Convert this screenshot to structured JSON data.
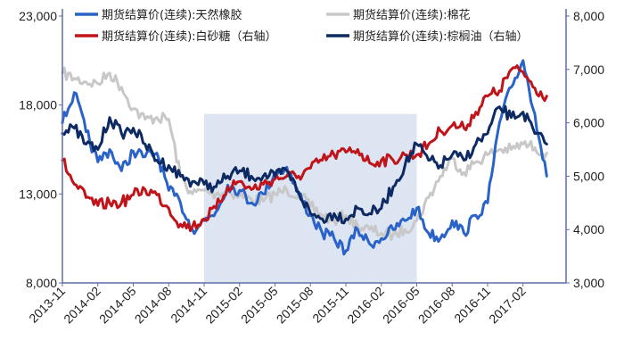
{
  "chart_data": {
    "type": "line",
    "title": "",
    "xlabel": "",
    "ylabel": "",
    "y_left": {
      "range": [
        8000,
        23000
      ],
      "ticks": [
        "8,000",
        "13,000",
        "18,000",
        "23,000"
      ]
    },
    "y_right": {
      "range": [
        3000,
        8000
      ],
      "ticks": [
        "3,000",
        "4,000",
        "5,000",
        "6,000",
        "7,000",
        "8,000"
      ]
    },
    "x_tick_labels": [
      "2013-11",
      "2014-02",
      "2014-05",
      "2014-08",
      "2014-11",
      "2015-02",
      "2015-05",
      "2015-08",
      "2015-11",
      "2016-02",
      "2016-05",
      "2016-08",
      "2016-11",
      "2017-02"
    ],
    "shaded_region": {
      "x_start": "2014-11",
      "x_end": "2016-05",
      "y_top": 17500,
      "color": "#dde4f2"
    },
    "legend_placement": "top",
    "grid": false,
    "colors": {
      "background": "#ffffff",
      "axis": "#5b6fa6",
      "shade": "#dde4f2"
    },
    "series": [
      {
        "name": "期货结算价(连续):天然橡胶",
        "axis": "left",
        "color": "#2a63c8",
        "data": [
          [
            "2013-11",
            17000
          ],
          [
            "2013-12",
            18700
          ],
          [
            "2014-01",
            16500
          ],
          [
            "2014-02",
            14800
          ],
          [
            "2014-03",
            15500
          ],
          [
            "2014-04",
            14300
          ],
          [
            "2014-05",
            15400
          ],
          [
            "2014-06",
            15100
          ],
          [
            "2014-07",
            15300
          ],
          [
            "2014-08",
            13200
          ],
          [
            "2014-09",
            12500
          ],
          [
            "2014-10",
            11000
          ],
          [
            "2014-11",
            11500
          ],
          [
            "2014-12",
            12000
          ],
          [
            "2015-01",
            13500
          ],
          [
            "2015-02",
            13200
          ],
          [
            "2015-03",
            12500
          ],
          [
            "2015-04",
            13000
          ],
          [
            "2015-05",
            14200
          ],
          [
            "2015-06",
            14500
          ],
          [
            "2015-07",
            13000
          ],
          [
            "2015-08",
            11800
          ],
          [
            "2015-09",
            10800
          ],
          [
            "2015-10",
            10500
          ],
          [
            "2015-11",
            9800
          ],
          [
            "2015-12",
            11000
          ],
          [
            "2016-01",
            10200
          ],
          [
            "2016-02",
            10500
          ],
          [
            "2016-03",
            11000
          ],
          [
            "2016-04",
            11500
          ],
          [
            "2016-05",
            12200
          ],
          [
            "2016-06",
            10800
          ],
          [
            "2016-07",
            10500
          ],
          [
            "2016-08",
            11500
          ],
          [
            "2016-09",
            10800
          ],
          [
            "2016-10",
            11800
          ],
          [
            "2016-11",
            12500
          ],
          [
            "2016-12",
            17000
          ],
          [
            "2017-01",
            19000
          ],
          [
            "2017-02",
            20500
          ],
          [
            "2017-03",
            17500
          ],
          [
            "2017-04",
            14000
          ]
        ]
      },
      {
        "name": "期货结算价(连续):棉花",
        "axis": "left",
        "color": "#c8c8c8",
        "data": [
          [
            "2013-11",
            19800
          ],
          [
            "2013-12",
            19500
          ],
          [
            "2014-01",
            19300
          ],
          [
            "2014-02",
            19200
          ],
          [
            "2014-03",
            19800
          ],
          [
            "2014-04",
            19000
          ],
          [
            "2014-05",
            17800
          ],
          [
            "2014-06",
            17200
          ],
          [
            "2014-07",
            17300
          ],
          [
            "2014-08",
            17200
          ],
          [
            "2014-09",
            14000
          ],
          [
            "2014-10",
            13000
          ],
          [
            "2014-11",
            13200
          ],
          [
            "2014-12",
            13000
          ],
          [
            "2015-01",
            13200
          ],
          [
            "2015-02",
            12900
          ],
          [
            "2015-03",
            12700
          ],
          [
            "2015-04",
            12600
          ],
          [
            "2015-05",
            13000
          ],
          [
            "2015-06",
            13200
          ],
          [
            "2015-07",
            13000
          ],
          [
            "2015-08",
            12300
          ],
          [
            "2015-09",
            11800
          ],
          [
            "2015-10",
            11500
          ],
          [
            "2015-11",
            11800
          ],
          [
            "2015-12",
            11200
          ],
          [
            "2016-01",
            11000
          ],
          [
            "2016-02",
            10800
          ],
          [
            "2016-03",
            10700
          ],
          [
            "2016-04",
            11000
          ],
          [
            "2016-05",
            11500
          ],
          [
            "2016-06",
            12800
          ],
          [
            "2016-07",
            14000
          ],
          [
            "2016-08",
            15000
          ],
          [
            "2016-09",
            14200
          ],
          [
            "2016-10",
            14800
          ],
          [
            "2016-11",
            15200
          ],
          [
            "2016-12",
            15500
          ],
          [
            "2017-01",
            15500
          ],
          [
            "2017-02",
            15800
          ],
          [
            "2017-03",
            15600
          ],
          [
            "2017-04",
            15300
          ]
        ]
      },
      {
        "name": "期货结算价(连续):白砂糖（右轴）",
        "axis": "right",
        "color": "#c0141b",
        "data": [
          [
            "2013-11",
            5300
          ],
          [
            "2013-12",
            4850
          ],
          [
            "2014-01",
            4600
          ],
          [
            "2014-02",
            4450
          ],
          [
            "2014-03",
            4500
          ],
          [
            "2014-04",
            4500
          ],
          [
            "2014-05",
            4650
          ],
          [
            "2014-06",
            4750
          ],
          [
            "2014-07",
            4650
          ],
          [
            "2014-08",
            4400
          ],
          [
            "2014-09",
            4100
          ],
          [
            "2014-10",
            4050
          ],
          [
            "2014-11",
            4200
          ],
          [
            "2014-12",
            4400
          ],
          [
            "2015-01",
            4800
          ],
          [
            "2015-02",
            4900
          ],
          [
            "2015-03",
            4750
          ],
          [
            "2015-04",
            4850
          ],
          [
            "2015-05",
            4950
          ],
          [
            "2015-06",
            5000
          ],
          [
            "2015-07",
            5000
          ],
          [
            "2015-08",
            5150
          ],
          [
            "2015-09",
            5300
          ],
          [
            "2015-10",
            5400
          ],
          [
            "2015-11",
            5450
          ],
          [
            "2015-12",
            5500
          ],
          [
            "2016-01",
            5250
          ],
          [
            "2016-02",
            5300
          ],
          [
            "2016-03",
            5300
          ],
          [
            "2016-04",
            5400
          ],
          [
            "2016-05",
            5400
          ],
          [
            "2016-06",
            5600
          ],
          [
            "2016-07",
            5850
          ],
          [
            "2016-08",
            5950
          ],
          [
            "2016-09",
            5900
          ],
          [
            "2016-10",
            6200
          ],
          [
            "2016-11",
            6500
          ],
          [
            "2016-12",
            6600
          ],
          [
            "2017-01",
            7000
          ],
          [
            "2017-02",
            6950
          ],
          [
            "2017-03",
            6650
          ],
          [
            "2017-04",
            6500
          ]
        ]
      },
      {
        "name": "期货结算价(连续):棕榈油（右轴）",
        "axis": "right",
        "color": "#0d2a63",
        "data": [
          [
            "2013-11",
            5800
          ],
          [
            "2013-12",
            5900
          ],
          [
            "2014-01",
            5600
          ],
          [
            "2014-02",
            5500
          ],
          [
            "2014-03",
            6100
          ],
          [
            "2014-04",
            5800
          ],
          [
            "2014-05",
            5900
          ],
          [
            "2014-06",
            5600
          ],
          [
            "2014-07",
            5300
          ],
          [
            "2014-08",
            5200
          ],
          [
            "2014-09",
            5000
          ],
          [
            "2014-10",
            4900
          ],
          [
            "2014-11",
            4850
          ],
          [
            "2014-12",
            4800
          ],
          [
            "2015-01",
            5000
          ],
          [
            "2015-02",
            5100
          ],
          [
            "2015-03",
            5000
          ],
          [
            "2015-04",
            5000
          ],
          [
            "2015-05",
            5000
          ],
          [
            "2015-06",
            5100
          ],
          [
            "2015-07",
            4700
          ],
          [
            "2015-08",
            4300
          ],
          [
            "2015-09",
            4200
          ],
          [
            "2015-10",
            4300
          ],
          [
            "2015-11",
            4200
          ],
          [
            "2015-12",
            4400
          ],
          [
            "2016-01",
            4300
          ],
          [
            "2016-02",
            4400
          ],
          [
            "2016-03",
            4800
          ],
          [
            "2016-04",
            5200
          ],
          [
            "2016-05",
            5600
          ],
          [
            "2016-06",
            5300
          ],
          [
            "2016-07",
            5200
          ],
          [
            "2016-08",
            5400
          ],
          [
            "2016-09",
            5300
          ],
          [
            "2016-10",
            5600
          ],
          [
            "2016-11",
            5800
          ],
          [
            "2016-12",
            6300
          ],
          [
            "2017-01",
            6100
          ],
          [
            "2017-02",
            6200
          ],
          [
            "2017-03",
            5800
          ],
          [
            "2017-04",
            5600
          ]
        ]
      }
    ]
  }
}
